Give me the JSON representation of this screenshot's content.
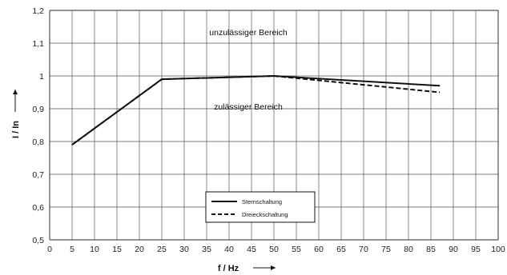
{
  "chart_data": {
    "type": "line",
    "title": "",
    "xlabel": "f / Hz",
    "ylabel": "I / In",
    "xlim": [
      0,
      100
    ],
    "ylim": [
      0.5,
      1.2
    ],
    "x_ticks": [
      "0",
      "5",
      "10",
      "15",
      "20",
      "25",
      "30",
      "35",
      "40",
      "45",
      "50",
      "55",
      "60",
      "65",
      "70",
      "75",
      "80",
      "85",
      "90",
      "95",
      "100"
    ],
    "y_ticks": [
      "0,5",
      "0,6",
      "0,7",
      "0,8",
      "0,9",
      "1",
      "1,1",
      "1,2"
    ],
    "grid": true,
    "legend_position": "bottom-center",
    "annotations": {
      "upper": "unzulässiger Bereich",
      "lower": "zulässiger Bereich"
    },
    "series": [
      {
        "name": "Sternschaltung",
        "style": "solid",
        "color": "#111111",
        "x": [
          5,
          25,
          50,
          87
        ],
        "y": [
          0.79,
          0.99,
          1.0,
          0.97
        ]
      },
      {
        "name": "Dreieckschaltung",
        "style": "dashed",
        "color": "#111111",
        "x": [
          5,
          25,
          50,
          87
        ],
        "y": [
          0.79,
          0.99,
          1.0,
          0.95
        ]
      }
    ]
  }
}
